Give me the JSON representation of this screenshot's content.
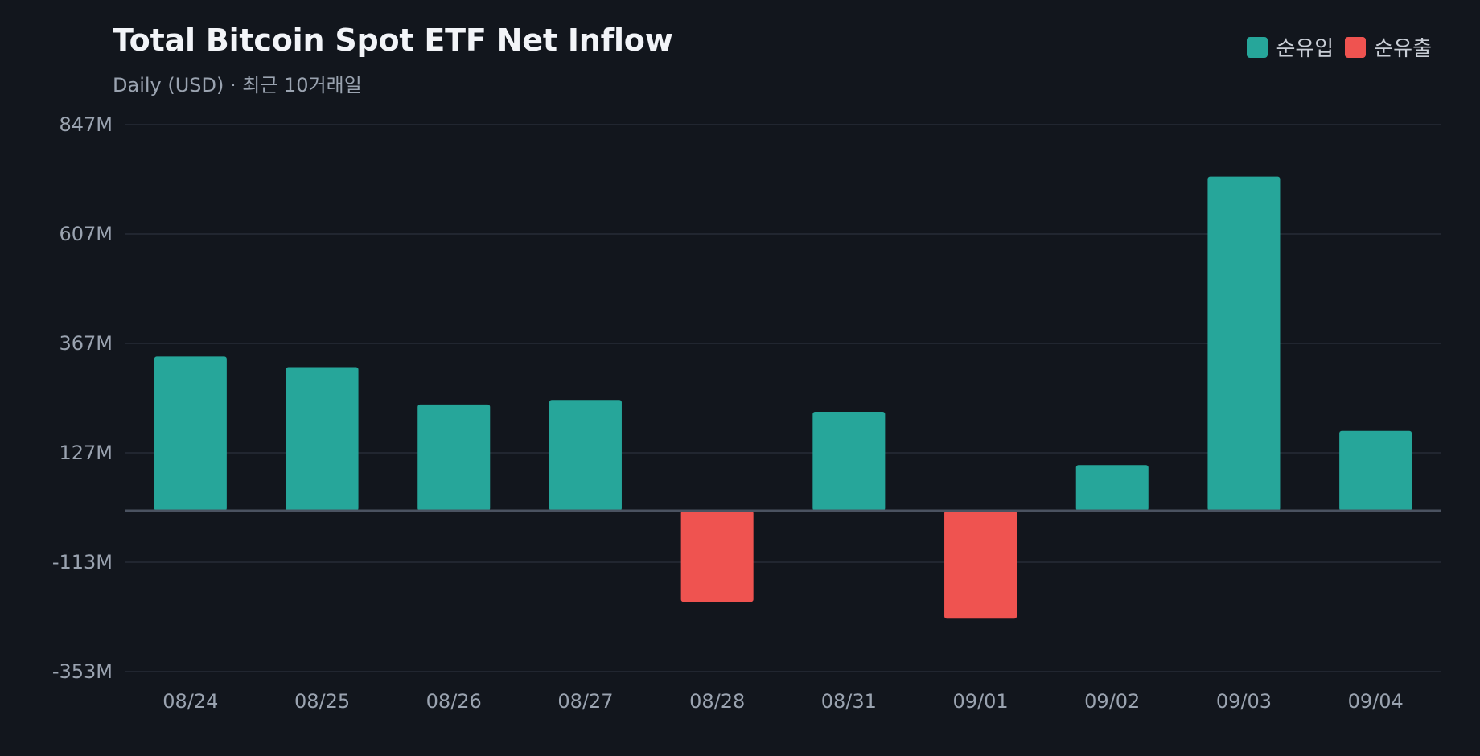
{
  "chart_data": {
    "type": "bar",
    "title": "Total Bitcoin Spot ETF Net Inflow",
    "subtitle": "Daily (USD) · 최근 10거래일",
    "xlabel": "",
    "ylabel": "",
    "categories": [
      "08/24",
      "08/25",
      "08/26",
      "08/27",
      "08/28",
      "08/31",
      "09/01",
      "09/02",
      "09/03",
      "09/04"
    ],
    "values": [
      338,
      315,
      233,
      243,
      -200,
      217,
      -237,
      100,
      733,
      175
    ],
    "ylim": [
      -353,
      847
    ],
    "yticks": [
      847,
      607,
      367,
      127,
      -113,
      -353
    ],
    "ytick_labels": [
      "847M",
      "607M",
      "367M",
      "127M",
      "-113M",
      "-353M"
    ],
    "grid": true,
    "legend": {
      "placement": "top-right",
      "entries": [
        {
          "label": "순유입",
          "color": "#26a69a"
        },
        {
          "label": "순유출",
          "color": "#ef5350"
        }
      ]
    },
    "colors": {
      "positive": "#26a69a",
      "negative": "#ef5350",
      "grid": "#262c36",
      "zero_line": "#4a5260",
      "background": "#12161d"
    }
  }
}
